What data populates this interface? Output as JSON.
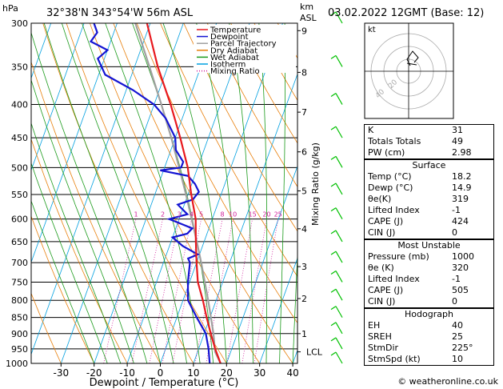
{
  "header": {
    "units_left": "hPa",
    "location": "32°38'N 343°54'W 56m ASL",
    "units_right_top": "km",
    "units_right_bottom": "ASL",
    "datetime": "03.02.2022 12GMT (Base: 12)"
  },
  "footer": {
    "credit": "© weatheronline.co.uk"
  },
  "colors": {
    "temperature": "#e8191e",
    "dewpoint": "#1414d2",
    "parcel": "#a0a0a0",
    "dry_adiabat": "#e87f0a",
    "wet_adiabat": "#1a9a1a",
    "isotherm": "#00a0e0",
    "mixing_ratio": "#d01c9a",
    "wind": "#00c000"
  },
  "chart_data": {
    "type": "line",
    "title": "",
    "xlabel": "Dewpoint / Temperature (°C)",
    "ylabel": "",
    "ylabel_right": "Mixing Ratio (g/kg)",
    "xlim": [
      -35,
      40
    ],
    "ylim_hpa": [
      1000,
      300
    ],
    "x_ticks": [
      -30,
      -20,
      -10,
      0,
      10,
      20,
      30,
      40
    ],
    "pressure_ticks": [
      300,
      350,
      400,
      450,
      500,
      550,
      600,
      650,
      700,
      750,
      800,
      850,
      900,
      950,
      1000
    ],
    "km_ticks": [
      {
        "km": "9",
        "p": 308
      },
      {
        "km": "8",
        "p": 357
      },
      {
        "km": "7",
        "p": 411
      },
      {
        "km": "6",
        "p": 473
      },
      {
        "km": "5",
        "p": 543
      },
      {
        "km": "4",
        "p": 621
      },
      {
        "km": "3",
        "p": 710
      },
      {
        "km": "2",
        "p": 795
      },
      {
        "km": "1",
        "p": 900
      }
    ],
    "lcl": {
      "label": "LCL",
      "p": 960
    },
    "mixing_ratio_labels": [
      "1",
      "2",
      "3",
      "4",
      "5",
      "8",
      "10",
      "15",
      "20",
      "25"
    ],
    "mixing_ratio_values": [
      1,
      2,
      3,
      4,
      5,
      8,
      10,
      15,
      20,
      25
    ],
    "legend": [
      "Temperature",
      "Dewpoint",
      "Parcel Trajectory",
      "Dry Adiabat",
      "Wet Adiabat",
      "Isotherm",
      "Mixing Ratio"
    ],
    "legend_position": "top-right",
    "series": [
      {
        "name": "Temperature",
        "points": [
          [
            1000,
            18.2
          ],
          [
            950,
            15
          ],
          [
            900,
            12
          ],
          [
            850,
            9
          ],
          [
            800,
            6
          ],
          [
            750,
            2.5
          ],
          [
            700,
            0
          ],
          [
            650,
            -2.5
          ],
          [
            600,
            -5
          ],
          [
            550,
            -9
          ],
          [
            500,
            -13
          ],
          [
            450,
            -18.5
          ],
          [
            400,
            -25
          ],
          [
            350,
            -33
          ],
          [
            300,
            -41
          ]
        ]
      },
      {
        "name": "Dewpoint",
        "points": [
          [
            1000,
            14.9
          ],
          [
            950,
            13
          ],
          [
            900,
            10.5
          ],
          [
            850,
            6
          ],
          [
            800,
            1.5
          ],
          [
            750,
            -0.5
          ],
          [
            700,
            -2
          ],
          [
            690,
            -3
          ],
          [
            680,
            -0.5
          ],
          [
            660,
            -6
          ],
          [
            640,
            -10
          ],
          [
            632,
            -6
          ],
          [
            620,
            -5
          ],
          [
            610,
            -9
          ],
          [
            600,
            -13
          ],
          [
            590,
            -8
          ],
          [
            570,
            -12
          ],
          [
            560,
            -8
          ],
          [
            545,
            -7
          ],
          [
            530,
            -9
          ],
          [
            515,
            -12
          ],
          [
            505,
            -21
          ],
          [
            500,
            -15
          ],
          [
            490,
            -15
          ],
          [
            470,
            -18.5
          ],
          [
            450,
            -20
          ],
          [
            420,
            -25
          ],
          [
            400,
            -30
          ],
          [
            380,
            -38
          ],
          [
            360,
            -48
          ],
          [
            340,
            -52
          ],
          [
            330,
            -50
          ],
          [
            320,
            -56
          ],
          [
            310,
            -55
          ],
          [
            300,
            -57
          ]
        ]
      },
      {
        "name": "Parcel Trajectory",
        "points": [
          [
            1000,
            18.2
          ],
          [
            960,
            15.3
          ],
          [
            900,
            12.8
          ],
          [
            850,
            10.3
          ],
          [
            800,
            7.6
          ],
          [
            750,
            4.6
          ],
          [
            700,
            1.4
          ],
          [
            650,
            -2.2
          ],
          [
            600,
            -6.2
          ],
          [
            550,
            -10.6
          ],
          [
            500,
            -15.6
          ],
          [
            450,
            -21.2
          ],
          [
            400,
            -27.8
          ],
          [
            350,
            -35.5
          ],
          [
            300,
            -44.5
          ]
        ]
      }
    ],
    "wind_pressures": [
      300,
      350,
      400,
      450,
      500,
      550,
      600,
      650,
      700,
      750,
      800,
      850,
      900,
      950,
      1000
    ]
  },
  "hodograph": {
    "title": "kt",
    "ring_labels": [
      "20",
      "40"
    ]
  },
  "indices": [
    {
      "label": "K",
      "value": "31"
    },
    {
      "label": "Totals Totals",
      "value": "49"
    },
    {
      "label": "PW (cm)",
      "value": "2.98"
    }
  ],
  "surface": {
    "title": "Surface",
    "rows": [
      {
        "label": "Temp (°C)",
        "value": "18.2"
      },
      {
        "label": "Dewp (°C)",
        "value": "14.9"
      },
      {
        "label": "θe(K)",
        "value": "319"
      },
      {
        "label": "Lifted Index",
        "value": "-1"
      },
      {
        "label": "CAPE (J)",
        "value": "424"
      },
      {
        "label": "CIN (J)",
        "value": "0"
      }
    ]
  },
  "most_unstable": {
    "title": "Most Unstable",
    "rows": [
      {
        "label": "Pressure (mb)",
        "value": "1000"
      },
      {
        "label": "θe (K)",
        "value": "320"
      },
      {
        "label": "Lifted Index",
        "value": "-1"
      },
      {
        "label": "CAPE (J)",
        "value": "505"
      },
      {
        "label": "CIN (J)",
        "value": "0"
      }
    ]
  },
  "hodograph_table": {
    "title": "Hodograph",
    "rows": [
      {
        "label": "EH",
        "value": "40"
      },
      {
        "label": "SREH",
        "value": "25"
      },
      {
        "label": "StmDir",
        "value": "225°"
      },
      {
        "label": "StmSpd (kt)",
        "value": "10"
      }
    ]
  }
}
